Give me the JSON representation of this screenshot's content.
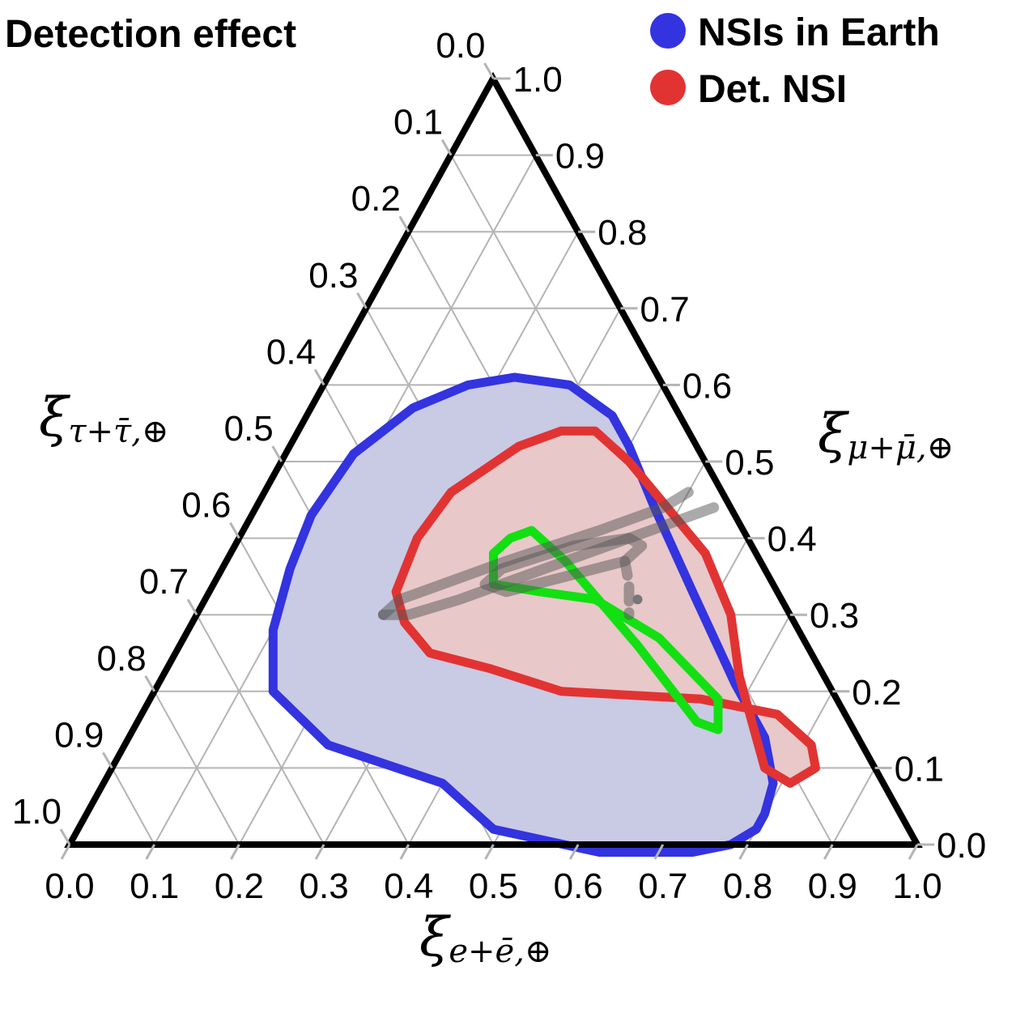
{
  "chart_data": {
    "type": "ternary",
    "title": "Detection effect",
    "axes": {
      "bottom": {
        "label_main": "ξ",
        "label_sub": "e+ē,⊕",
        "range": [
          0,
          1
        ]
      },
      "right": {
        "label_main": "ξ",
        "label_sub": "μ+μ̄,⊕",
        "range": [
          0,
          1
        ]
      },
      "left": {
        "label_main": "ξ",
        "label_sub": "τ+τ̄,⊕",
        "range": [
          0,
          1
        ]
      }
    },
    "ticks": [
      "0.0",
      "0.1",
      "0.2",
      "0.3",
      "0.4",
      "0.5",
      "0.6",
      "0.7",
      "0.8",
      "0.9",
      "1.0"
    ],
    "grid": true,
    "legend": {
      "position": "top-right",
      "entries": [
        {
          "name": "NSIs in Earth",
          "color": "#3333e0"
        },
        {
          "name": "Det. NSI",
          "color": "#e23333"
        }
      ]
    },
    "series": [
      {
        "name": "NSIs in Earth",
        "color": "#3333e0",
        "fill": "#c9cae4",
        "closed": true,
        "points": [
          [
            0.4,
            0.08,
            0.52
          ],
          [
            0.24,
            0.13,
            0.63
          ],
          [
            0.14,
            0.2,
            0.66
          ],
          [
            0.1,
            0.28,
            0.62
          ],
          [
            0.08,
            0.36,
            0.56
          ],
          [
            0.07,
            0.43,
            0.5
          ],
          [
            0.08,
            0.51,
            0.41
          ],
          [
            0.12,
            0.57,
            0.31
          ],
          [
            0.17,
            0.6,
            0.23
          ],
          [
            0.22,
            0.61,
            0.17
          ],
          [
            0.29,
            0.6,
            0.11
          ],
          [
            0.36,
            0.56,
            0.08
          ],
          [
            0.4,
            0.52,
            0.08
          ],
          [
            0.47,
            0.44,
            0.09
          ],
          [
            0.57,
            0.33,
            0.1
          ],
          [
            0.68,
            0.21,
            0.11
          ],
          [
            0.75,
            0.14,
            0.11
          ],
          [
            0.77,
            0.11,
            0.12
          ],
          [
            0.79,
            0.08,
            0.13
          ],
          [
            0.8,
            0.04,
            0.16
          ],
          [
            0.8,
            0.02,
            0.18
          ],
          [
            0.78,
            0.0,
            0.22
          ],
          [
            0.74,
            -0.01,
            0.27
          ],
          [
            0.63,
            -0.01,
            0.38
          ],
          [
            0.49,
            0.02,
            0.49
          ]
        ]
      },
      {
        "name": "Det. NSI",
        "color": "#e23333",
        "fill": "#e8c8c9",
        "closed": true,
        "points": [
          [
            0.38,
            0.23,
            0.39
          ],
          [
            0.3,
            0.25,
            0.45
          ],
          [
            0.25,
            0.29,
            0.46
          ],
          [
            0.22,
            0.33,
            0.45
          ],
          [
            0.21,
            0.4,
            0.39
          ],
          [
            0.22,
            0.46,
            0.32
          ],
          [
            0.27,
            0.52,
            0.21
          ],
          [
            0.31,
            0.54,
            0.15
          ],
          [
            0.35,
            0.54,
            0.11
          ],
          [
            0.41,
            0.5,
            0.09
          ],
          [
            0.56,
            0.38,
            0.06
          ],
          [
            0.63,
            0.3,
            0.07
          ],
          [
            0.68,
            0.22,
            0.1
          ],
          [
            0.77,
            0.1,
            0.13
          ],
          [
            0.81,
            0.08,
            0.11
          ],
          [
            0.83,
            0.1,
            0.07
          ],
          [
            0.81,
            0.13,
            0.06
          ],
          [
            0.75,
            0.17,
            0.08
          ],
          [
            0.65,
            0.19,
            0.16
          ],
          [
            0.48,
            0.2,
            0.32
          ]
        ]
      },
      {
        "name": "",
        "color": "#12e012",
        "fill": "none",
        "closed": true,
        "points": [
          [
            0.33,
            0.34,
            0.33
          ],
          [
            0.31,
            0.38,
            0.31
          ],
          [
            0.32,
            0.4,
            0.28
          ],
          [
            0.34,
            0.41,
            0.25
          ],
          [
            0.4,
            0.37,
            0.23
          ],
          [
            0.54,
            0.26,
            0.2
          ],
          [
            0.66,
            0.16,
            0.18
          ],
          [
            0.69,
            0.15,
            0.16
          ],
          [
            0.67,
            0.19,
            0.14
          ],
          [
            0.56,
            0.27,
            0.17
          ],
          [
            0.46,
            0.32,
            0.22
          ],
          [
            0.39,
            0.33,
            0.28
          ]
        ]
      },
      {
        "name": "",
        "color": "#555555",
        "fill": "none",
        "closed": false,
        "opacity": 0.5,
        "points": [
          [
            0.22,
            0.3,
            0.48
          ],
          [
            0.23,
            0.32,
            0.45
          ],
          [
            0.27,
            0.34,
            0.39
          ],
          [
            0.33,
            0.37,
            0.3
          ],
          [
            0.42,
            0.41,
            0.17
          ],
          [
            0.48,
            0.44,
            0.08
          ],
          [
            0.5,
            0.46,
            0.04
          ]
        ]
      },
      {
        "name": "",
        "color": "#555555",
        "fill": "none",
        "closed": false,
        "opacity": 0.5,
        "points": [
          [
            0.22,
            0.3,
            0.48
          ],
          [
            0.25,
            0.3,
            0.45
          ],
          [
            0.3,
            0.32,
            0.38
          ],
          [
            0.4,
            0.37,
            0.23
          ],
          [
            0.5,
            0.42,
            0.08
          ],
          [
            0.54,
            0.44,
            0.02
          ]
        ]
      },
      {
        "name": "",
        "color": "#555555",
        "fill": "none",
        "closed": true,
        "opacity": 0.5,
        "points": [
          [
            0.32,
            0.34,
            0.34
          ],
          [
            0.33,
            0.36,
            0.31
          ],
          [
            0.4,
            0.39,
            0.21
          ],
          [
            0.46,
            0.4,
            0.14
          ],
          [
            0.48,
            0.39,
            0.13
          ],
          [
            0.47,
            0.37,
            0.16
          ],
          [
            0.41,
            0.35,
            0.24
          ],
          [
            0.35,
            0.33,
            0.32
          ]
        ]
      },
      {
        "name": "",
        "color": "#555555",
        "fill": "none",
        "closed": false,
        "opacity": 0.5,
        "dashed": true,
        "points": [
          [
            0.47,
            0.37,
            0.16
          ],
          [
            0.49,
            0.34,
            0.17
          ],
          [
            0.51,
            0.3,
            0.19
          ]
        ]
      }
    ],
    "markers": [
      {
        "point": [
          0.51,
          0.32,
          0.17
        ],
        "color": "#777777"
      }
    ]
  }
}
